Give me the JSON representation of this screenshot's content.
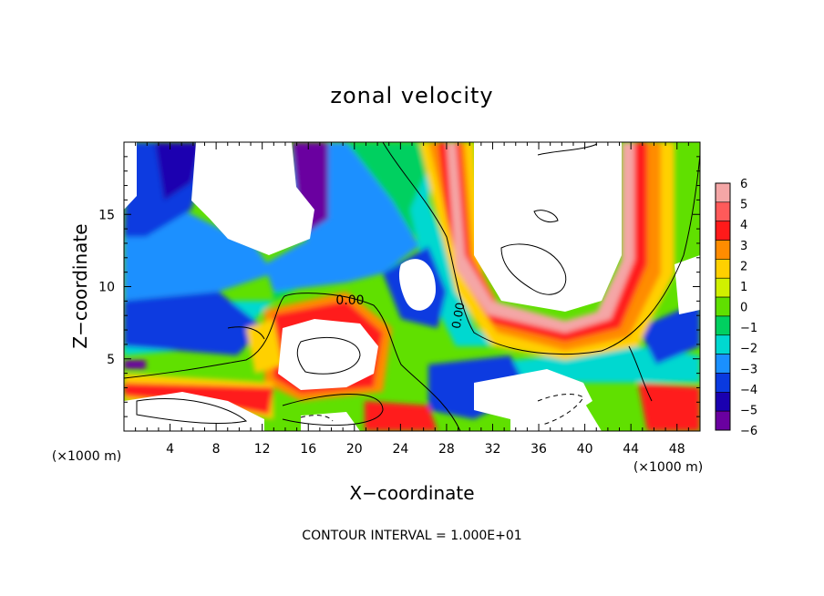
{
  "chart_data": {
    "type": "heatmap",
    "title": "zonal velocity",
    "xlabel": "X−coordinate",
    "ylabel": "Z−coordinate",
    "x_units": "(×1000 m)",
    "y_units": "(×1000 m)",
    "footer": "CONTOUR INTERVAL = 1.000E+01",
    "contour_label": "0.00",
    "xlim": [
      0,
      50
    ],
    "ylim": [
      0,
      20
    ],
    "xticks": [
      4,
      8,
      12,
      16,
      20,
      24,
      28,
      32,
      36,
      40,
      44,
      48
    ],
    "yticks": [
      5,
      10,
      15
    ],
    "colorbar": {
      "levels": [
        6,
        5,
        4,
        3,
        2,
        1,
        0,
        -1,
        -2,
        -3,
        -4,
        -5,
        -6
      ],
      "labels": [
        "6",
        "5",
        "4",
        "3",
        "2",
        "1",
        "0",
        "−1",
        "−2",
        "−3",
        "−4",
        "−5",
        "−6"
      ],
      "colors": [
        "#f4a6a6",
        "#ff5a5a",
        "#ff1a1a",
        "#ff8c00",
        "#ffd000",
        "#d0f000",
        "#60e000",
        "#00d060",
        "#00d8d0",
        "#1a90ff",
        "#0a3ae0",
        "#1a00b0",
        "#6a00a0"
      ],
      "above_range_color": "#ffffff"
    }
  }
}
